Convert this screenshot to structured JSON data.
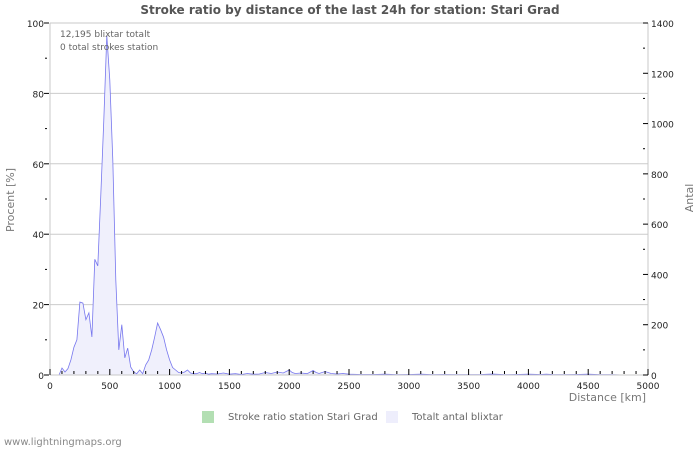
{
  "chart_data": {
    "type": "area",
    "title": "Stroke ratio by distance of the last 24h for station: Stari Grad",
    "xlabel": "Distance   [km]",
    "ylabel_left": "Procent   [%]",
    "ylabel_right": "Antal",
    "xlim": [
      0,
      5000
    ],
    "ylim_left": [
      0,
      100
    ],
    "ylim_right": [
      0,
      1400
    ],
    "x_ticks": [
      "0",
      "500",
      "1000",
      "1500",
      "2000",
      "2500",
      "3000",
      "3500",
      "4000",
      "4500",
      "5000"
    ],
    "y_left_ticks": [
      "0",
      "20",
      "40",
      "60",
      "80",
      "100"
    ],
    "y_right_ticks": [
      "0",
      "200",
      "400",
      "600",
      "800",
      "1000",
      "1200",
      "1400"
    ],
    "grid": true,
    "annotations": [
      "12,195 blixtar totalt",
      "0 total strokes station"
    ],
    "legend": [
      {
        "label": "Stroke ratio station Stari Grad",
        "color": "#b3dfb3"
      },
      {
        "label": "Totalt antal blixtar",
        "color": "#eeeefc"
      }
    ],
    "series": [
      {
        "name": "Totalt antal blixtar",
        "axis": "right",
        "color": "#7777ee",
        "fill": "#f0f0fc",
        "x": [
          0,
          25,
          50,
          75,
          100,
          125,
          150,
          175,
          200,
          225,
          250,
          275,
          300,
          325,
          350,
          375,
          400,
          425,
          450,
          475,
          500,
          525,
          550,
          575,
          600,
          625,
          650,
          675,
          700,
          725,
          750,
          775,
          800,
          825,
          850,
          875,
          900,
          925,
          950,
          975,
          1000,
          1025,
          1050,
          1075,
          1100,
          1125,
          1150,
          1175,
          1200,
          1225,
          1250,
          1275,
          1300,
          1325,
          1350,
          1400,
          1450,
          1500,
          1550,
          1600,
          1650,
          1700,
          1750,
          1800,
          1850,
          1900,
          1950,
          2000,
          2025,
          2050,
          2100,
          2150,
          2200,
          2225,
          2250,
          2300,
          2350,
          2400,
          2450,
          2500,
          2600,
          2700,
          2800,
          2900,
          3000,
          3100,
          3200,
          3300,
          3400,
          3500,
          3600,
          3700,
          3800,
          3900,
          4000,
          4100,
          4150,
          4200,
          4300,
          4400,
          4500,
          4600,
          4700,
          4800,
          4900,
          5000
        ],
        "values": [
          0,
          0,
          0,
          0,
          28,
          12,
          25,
          60,
          110,
          140,
          290,
          286,
          220,
          247,
          151,
          460,
          434,
          716,
          1014,
          1350,
          1173,
          855,
          378,
          100,
          200,
          68,
          107,
          32,
          12,
          5,
          20,
          5,
          40,
          60,
          100,
          150,
          207,
          180,
          150,
          100,
          60,
          30,
          20,
          10,
          8,
          12,
          20,
          8,
          5,
          5,
          10,
          5,
          8,
          3,
          5,
          4,
          8,
          3,
          5,
          2,
          6,
          3,
          4,
          10,
          6,
          12,
          8,
          20,
          10,
          6,
          8,
          5,
          18,
          10,
          6,
          14,
          6,
          4,
          6,
          3,
          2,
          2,
          3,
          1,
          2,
          3,
          1,
          2,
          1,
          1,
          2,
          4,
          1,
          2,
          3,
          2,
          3,
          2,
          1,
          2,
          3,
          1,
          1,
          0,
          0,
          0
        ]
      },
      {
        "name": "Stroke ratio station Stari Grad",
        "axis": "left",
        "color": "#66bb66",
        "values": []
      }
    ]
  },
  "footer": "www.lightningmaps.org"
}
